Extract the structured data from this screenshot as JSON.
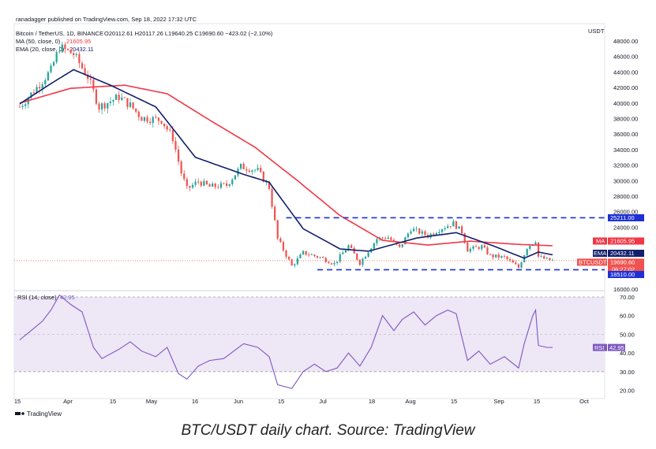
{
  "header": {
    "published": "ranadagger published on TradingView.com, Sep 18, 2022 17:32 UTC",
    "symbol": "Bitcoin / TetherUS, 1D, BINANCE",
    "ohlc": "O20112.61 H20117.26 L19640.25 C19690.60 −423.02 (−2.10%)",
    "ma_legend": "MA (50, close, 0)",
    "ma_value": "21605.95",
    "ema_legend": "EMA (20, close, 0)",
    "ema_value": "20432.11"
  },
  "price_axis": {
    "currency": "USDT",
    "ticks": [
      "48000.00",
      "46000.00",
      "44000.00",
      "42000.00",
      "40000.00",
      "38000.00",
      "36000.00",
      "34000.00",
      "32000.00",
      "30000.00",
      "28000.00",
      "26000.00",
      "24000.00",
      "16000.00"
    ]
  },
  "rsi_axis": {
    "ticks": [
      "70.00",
      "60.00",
      "50.00",
      "40.00",
      "30.00",
      "20.00"
    ]
  },
  "rsi_legend": "RSI (14, close)",
  "rsi_value": "42.95",
  "time_axis": {
    "labels": [
      "15",
      "Apr",
      "15",
      "May",
      "16",
      "Jun",
      "15",
      "Jul",
      "18",
      "Aug",
      "15",
      "Sep",
      "15",
      "Oct"
    ]
  },
  "badges": {
    "ma_tag": "MA",
    "ma_value": "21605.95",
    "ema_tag": "EMA",
    "ema_value": "20432.11",
    "sym_tag": "BTCUSDT",
    "sym_value": "19690.60",
    "countdown": "06:27:02",
    "resistance": "25211.00",
    "support": "18510.00",
    "rsi_tag": "RSI",
    "rsi_value": "42.95"
  },
  "footer_logo": "TradingView",
  "caption": "BTC/USDT daily chart. Source: TradingView",
  "colors": {
    "up": "#26a69a",
    "down": "#ef5350",
    "ma": "#f23645",
    "ema": "#131f6b",
    "rsi": "#7e57c2",
    "rsi_band": "#ede7f6",
    "level": "#1e2fd6"
  },
  "chart_data": [
    {
      "type": "candlestick",
      "title": "Bitcoin / TetherUS, 1D, BINANCE",
      "ylim": [
        16000,
        49000
      ],
      "x": [
        "Mar 15",
        "Apr 1",
        "Apr 15",
        "May 1",
        "May 16",
        "Jun 1",
        "Jun 15",
        "Jul 1",
        "Jul 18",
        "Aug 1",
        "Aug 15",
        "Sep 1",
        "Sep 15",
        "Sep 18"
      ],
      "close_path": [
        {
          "d": "Mar 14",
          "v": 39500
        },
        {
          "d": "Mar 20",
          "v": 42000
        },
        {
          "d": "Mar 25",
          "v": 44200
        },
        {
          "d": "Mar 28",
          "v": 47200
        },
        {
          "d": "Apr 2",
          "v": 46300
        },
        {
          "d": "Apr 7",
          "v": 43400
        },
        {
          "d": "Apr 11",
          "v": 39500
        },
        {
          "d": "Apr 18",
          "v": 40800
        },
        {
          "d": "Apr 22",
          "v": 39700
        },
        {
          "d": "Apr 26",
          "v": 38100
        },
        {
          "d": "May 3",
          "v": 37800
        },
        {
          "d": "May 7",
          "v": 35500
        },
        {
          "d": "May 10",
          "v": 31000
        },
        {
          "d": "May 12",
          "v": 28900
        },
        {
          "d": "May 16",
          "v": 29900
        },
        {
          "d": "May 20",
          "v": 29200
        },
        {
          "d": "May 26",
          "v": 29400
        },
        {
          "d": "May 31",
          "v": 31800
        },
        {
          "d": "Jun 6",
          "v": 31300
        },
        {
          "d": "Jun 10",
          "v": 29100
        },
        {
          "d": "Jun 13",
          "v": 22500
        },
        {
          "d": "Jun 18",
          "v": 19000
        },
        {
          "d": "Jun 22",
          "v": 20700
        },
        {
          "d": "Jun 28",
          "v": 20100
        },
        {
          "d": "Jul 3",
          "v": 19300
        },
        {
          "d": "Jul 8",
          "v": 21600
        },
        {
          "d": "Jul 12",
          "v": 19400
        },
        {
          "d": "Jul 18",
          "v": 22500
        },
        {
          "d": "Jul 22",
          "v": 22700
        },
        {
          "d": "Jul 26",
          "v": 21300
        },
        {
          "d": "Jul 30",
          "v": 23800
        },
        {
          "d": "Aug 5",
          "v": 22900
        },
        {
          "d": "Aug 10",
          "v": 23900
        },
        {
          "d": "Aug 14",
          "v": 24500
        },
        {
          "d": "Aug 17",
          "v": 23400
        },
        {
          "d": "Aug 19",
          "v": 21100
        },
        {
          "d": "Aug 24",
          "v": 21500
        },
        {
          "d": "Aug 27",
          "v": 20300
        },
        {
          "d": "Sep 1",
          "v": 20100
        },
        {
          "d": "Sep 6",
          "v": 18800
        },
        {
          "d": "Sep 9",
          "v": 21400
        },
        {
          "d": "Sep 12",
          "v": 22300
        },
        {
          "d": "Sep 13",
          "v": 20200
        },
        {
          "d": "Sep 16",
          "v": 19800
        },
        {
          "d": "Sep 18",
          "v": 19690
        }
      ],
      "ma50": [
        {
          "d": "Mar 14",
          "v": 40000
        },
        {
          "d": "Apr 1",
          "v": 41900
        },
        {
          "d": "Apr 20",
          "v": 42300
        },
        {
          "d": "May 5",
          "v": 41200
        },
        {
          "d": "May 20",
          "v": 37800
        },
        {
          "d": "Jun 5",
          "v": 34300
        },
        {
          "d": "Jun 20",
          "v": 30000
        },
        {
          "d": "Jul 5",
          "v": 25500
        },
        {
          "d": "Jul 20",
          "v": 22300
        },
        {
          "d": "Aug 5",
          "v": 21700
        },
        {
          "d": "Aug 20",
          "v": 22200
        },
        {
          "d": "Sep 5",
          "v": 21800
        },
        {
          "d": "Sep 18",
          "v": 21606
        }
      ],
      "ema20": [
        {
          "d": "Mar 14",
          "v": 39900
        },
        {
          "d": "Mar 25",
          "v": 42500
        },
        {
          "d": "Apr 2",
          "v": 44300
        },
        {
          "d": "Apr 15",
          "v": 42300
        },
        {
          "d": "May 1",
          "v": 39500
        },
        {
          "d": "May 15",
          "v": 33000
        },
        {
          "d": "Jun 1",
          "v": 30800
        },
        {
          "d": "Jun 10",
          "v": 29800
        },
        {
          "d": "Jun 22",
          "v": 23800
        },
        {
          "d": "Jul 5",
          "v": 21200
        },
        {
          "d": "Jul 15",
          "v": 20900
        },
        {
          "d": "Aug 1",
          "v": 22600
        },
        {
          "d": "Aug 15",
          "v": 23300
        },
        {
          "d": "Aug 28",
          "v": 21600
        },
        {
          "d": "Sep 8",
          "v": 20000
        },
        {
          "d": "Sep 13",
          "v": 20800
        },
        {
          "d": "Sep 18",
          "v": 20432
        }
      ],
      "levels": [
        {
          "name": "resistance",
          "value": 25211,
          "from": "Jun 16",
          "to": "Sep 30"
        },
        {
          "name": "support",
          "value": 18510,
          "from": "Jun 27",
          "to": "Sep 30"
        }
      ],
      "last_price": 19690.6
    },
    {
      "type": "line",
      "title": "RSI (14, close)",
      "ylim": [
        16,
        74
      ],
      "band": [
        30,
        70
      ],
      "midline": 50,
      "points": [
        {
          "d": "Mar 14",
          "v": 47
        },
        {
          "d": "Mar 18",
          "v": 52
        },
        {
          "d": "Mar 22",
          "v": 57
        },
        {
          "d": "Mar 25",
          "v": 63
        },
        {
          "d": "Mar 28",
          "v": 71
        },
        {
          "d": "Apr 1",
          "v": 66
        },
        {
          "d": "Apr 5",
          "v": 62
        },
        {
          "d": "Apr 9",
          "v": 43
        },
        {
          "d": "Apr 12",
          "v": 37
        },
        {
          "d": "Apr 18",
          "v": 42
        },
        {
          "d": "Apr 22",
          "v": 46
        },
        {
          "d": "Apr 26",
          "v": 41
        },
        {
          "d": "May 1",
          "v": 38
        },
        {
          "d": "May 5",
          "v": 43
        },
        {
          "d": "May 9",
          "v": 29
        },
        {
          "d": "May 12",
          "v": 26
        },
        {
          "d": "May 16",
          "v": 33
        },
        {
          "d": "May 20",
          "v": 36
        },
        {
          "d": "May 25",
          "v": 37
        },
        {
          "d": "Jun 1",
          "v": 45
        },
        {
          "d": "Jun 6",
          "v": 43
        },
        {
          "d": "Jun 10",
          "v": 38
        },
        {
          "d": "Jun 13",
          "v": 23
        },
        {
          "d": "Jun 18",
          "v": 21
        },
        {
          "d": "Jun 22",
          "v": 30
        },
        {
          "d": "Jun 26",
          "v": 34
        },
        {
          "d": "Jun 30",
          "v": 30
        },
        {
          "d": "Jul 4",
          "v": 32
        },
        {
          "d": "Jul 8",
          "v": 40
        },
        {
          "d": "Jul 12",
          "v": 33
        },
        {
          "d": "Jul 16",
          "v": 43
        },
        {
          "d": "Jul 20",
          "v": 60
        },
        {
          "d": "Jul 24",
          "v": 52
        },
        {
          "d": "Jul 27",
          "v": 58
        },
        {
          "d": "Jul 31",
          "v": 62
        },
        {
          "d": "Aug 4",
          "v": 55
        },
        {
          "d": "Aug 8",
          "v": 60
        },
        {
          "d": "Aug 12",
          "v": 63
        },
        {
          "d": "Aug 15",
          "v": 61
        },
        {
          "d": "Aug 19",
          "v": 36
        },
        {
          "d": "Aug 23",
          "v": 41
        },
        {
          "d": "Aug 27",
          "v": 34
        },
        {
          "d": "Sep 1",
          "v": 38
        },
        {
          "d": "Sep 6",
          "v": 32
        },
        {
          "d": "Sep 8",
          "v": 45
        },
        {
          "d": "Sep 11",
          "v": 60
        },
        {
          "d": "Sep 12",
          "v": 63
        },
        {
          "d": "Sep 13",
          "v": 44
        },
        {
          "d": "Sep 16",
          "v": 43
        },
        {
          "d": "Sep 18",
          "v": 42.95
        }
      ],
      "last_value": 42.95
    }
  ]
}
